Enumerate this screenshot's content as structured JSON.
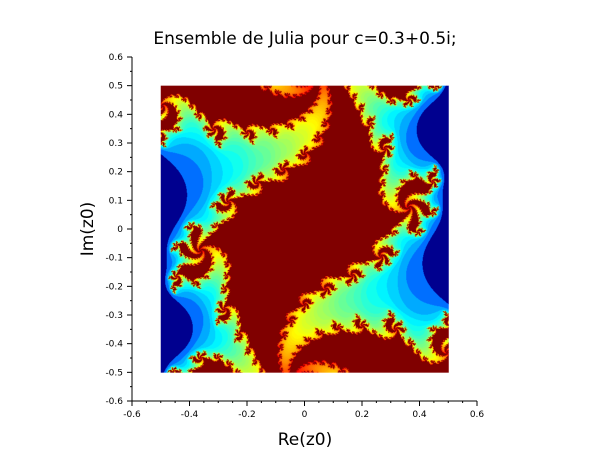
{
  "chart_data": {
    "type": "heatmap",
    "title": "Ensemble de Julia pour c=0.3+0.5i;",
    "xlabel": "Re(z0)",
    "ylabel": "Im(z0)",
    "xlim": [
      -0.6,
      0.6
    ],
    "ylim": [
      -0.6,
      0.6
    ],
    "xticks": [
      "-0.6",
      "-0.4",
      "-0.2",
      "0",
      "0.2",
      "0.4",
      "0.6"
    ],
    "yticks": [
      "-0.6",
      "-0.5",
      "-0.4",
      "-0.3",
      "-0.2",
      "-0.1",
      "0",
      "0.1",
      "0.2",
      "0.3",
      "0.4",
      "0.5",
      "0.6"
    ],
    "data_extent": {
      "re": [
        -0.5,
        0.5
      ],
      "im": [
        -0.5,
        0.5
      ]
    },
    "c": {
      "re": 0.3,
      "im": 0.5
    },
    "max_iterations": 100,
    "grid": false,
    "colormap": [
      "#00008f",
      "#0000ff",
      "#00ffff",
      "#ffff00",
      "#ff0000",
      "#800000"
    ]
  }
}
